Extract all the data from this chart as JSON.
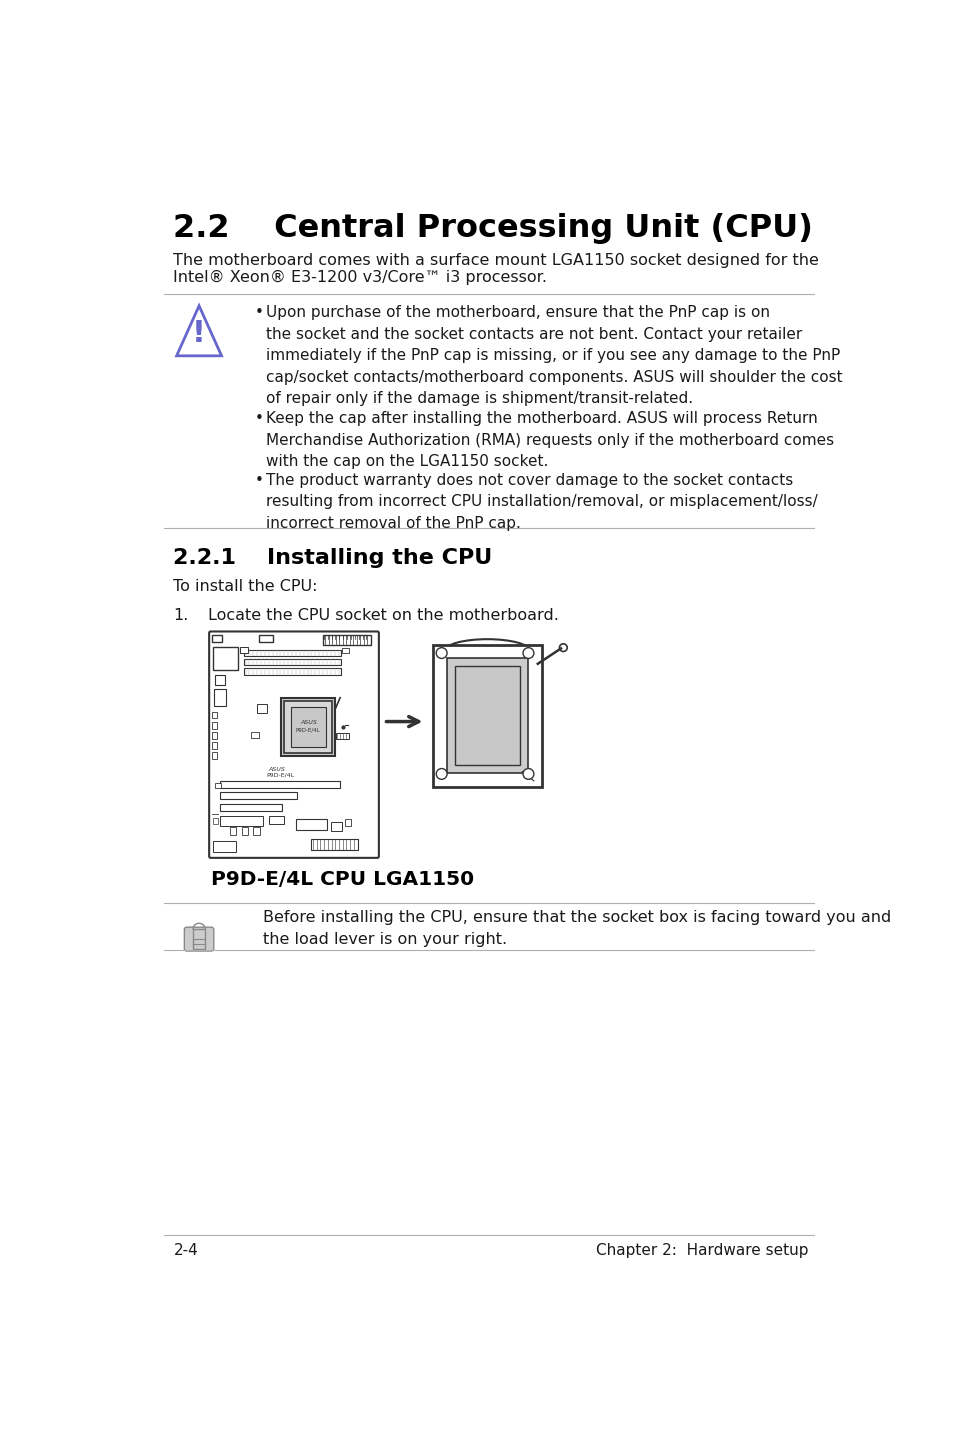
{
  "bg_color": "#ffffff",
  "title": "2.2    Central Processing Unit (CPU)",
  "subtitle_line1": "The motherboard comes with a surface mount LGA1150 socket designed for the",
  "subtitle_line2": "Intel® Xeon® E3-1200 v3/Core™ i3 processor.",
  "warning_bullets": [
    "Upon purchase of the motherboard, ensure that the PnP cap is on\nthe socket and the socket contacts are not bent. Contact your retailer\nimmediately if the PnP cap is missing, or if you see any damage to the PnP\ncap/socket contacts/motherboard components. ASUS will shoulder the cost\nof repair only if the damage is shipment/transit-related.",
    "Keep the cap after installing the motherboard. ASUS will process Return\nMerchandise Authorization (RMA) requests only if the motherboard comes\nwith the cap on the LGA1150 socket.",
    "The product warranty does not cover damage to the socket contacts\nresulting from incorrect CPU installation/removal, or misplacement/loss/\nincorrect removal of the PnP cap."
  ],
  "section_title": "2.2.1    Installing the CPU",
  "install_intro": "To install the CPU:",
  "step1_num": "1.",
  "step1_text": "Locate the CPU socket on the motherboard.",
  "image_label": "P9D-E/4L CPU LGA1150",
  "note_text": "Before installing the CPU, ensure that the socket box is facing toward you and\nthe load lever is on your right.",
  "footer_left": "2-4",
  "footer_right": "Chapter 2:  Hardware setup",
  "sep_color": "#b0b0b0",
  "text_color": "#1a1a1a",
  "warn_color": "#6666cc",
  "title_color": "#000000",
  "draw_color": "#333333",
  "draw_light": "#e8e8e8",
  "draw_mid": "#cccccc",
  "draw_dark": "#555555"
}
